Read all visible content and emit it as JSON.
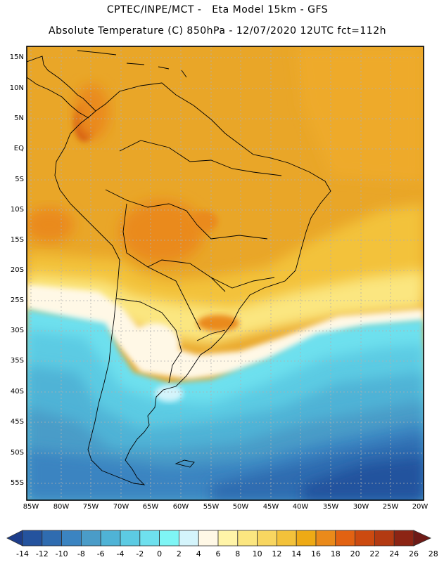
{
  "titles": {
    "line1": "CPTEC/INPE/MCT -   Eta Model 15km - GFS",
    "line2": "Absolute Temperature (C) 850hPa - 12/07/2020 12UTC fct=112h"
  },
  "map": {
    "lat_labels": [
      "15N",
      "10N",
      "5N",
      "EQ",
      "5S",
      "10S",
      "15S",
      "20S",
      "25S",
      "30S",
      "35S",
      "40S",
      "45S",
      "50S",
      "55S"
    ],
    "lon_labels": [
      "85W",
      "80W",
      "75W",
      "70W",
      "65W",
      "60W",
      "55W",
      "50W",
      "45W",
      "40W",
      "35W",
      "30W",
      "25W",
      "20W"
    ]
  },
  "colorbar": {
    "labels": [
      "-14",
      "-12",
      "-10",
      "-8",
      "-6",
      "-4",
      "-2",
      "0",
      "2",
      "4",
      "6",
      "8",
      "10",
      "12",
      "14",
      "16",
      "18",
      "20",
      "22",
      "24",
      "26",
      "28"
    ],
    "colors": [
      "#1d3d8a",
      "#24539e",
      "#2f6cb0",
      "#3b84c1",
      "#4a9cc8",
      "#4fb3d6",
      "#5ccbe3",
      "#6ee0ee",
      "#7ef5f5",
      "#d4f4fb",
      "#fff8e6",
      "#fff4a8",
      "#fbe680",
      "#f8d660",
      "#f3c23a",
      "#eeaa15",
      "#ea8a1a",
      "#e26212",
      "#cc4a10",
      "#b33a12",
      "#8c2414",
      "#6e1a16"
    ]
  }
}
